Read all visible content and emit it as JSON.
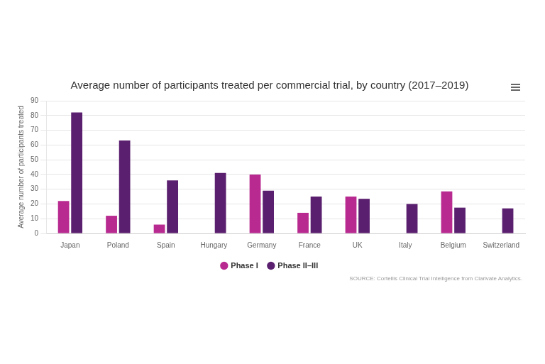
{
  "chart_data": {
    "type": "bar",
    "title": "Average number of participants treated per commercial trial, by country (2017–2019)",
    "ylabel": "Average number of participants treated",
    "annotations": [
      "SOURCE: Cortellis Clinical Trial Intelligence from Clarivate Analytics."
    ],
    "categories": [
      "Japan",
      "Poland",
      "Spain",
      "Hungary",
      "Germany",
      "France",
      "UK",
      "Italy",
      "Belgium",
      "Switzerland"
    ],
    "series": [
      {
        "name": "Phase I",
        "color": "#b82a8f",
        "values": [
          22,
          12,
          6,
          null,
          40,
          14,
          25,
          null,
          28.5,
          null
        ]
      },
      {
        "name": "Phase II–III",
        "color": "#5b1f6f",
        "values": [
          82,
          63,
          36,
          41,
          29,
          25,
          23.5,
          20,
          17.5,
          17
        ]
      }
    ],
    "ylim": [
      0,
      90
    ],
    "yticks": [
      0,
      10,
      20,
      30,
      40,
      50,
      60,
      70,
      80,
      90
    ],
    "grid": true,
    "legend": "bottom"
  }
}
